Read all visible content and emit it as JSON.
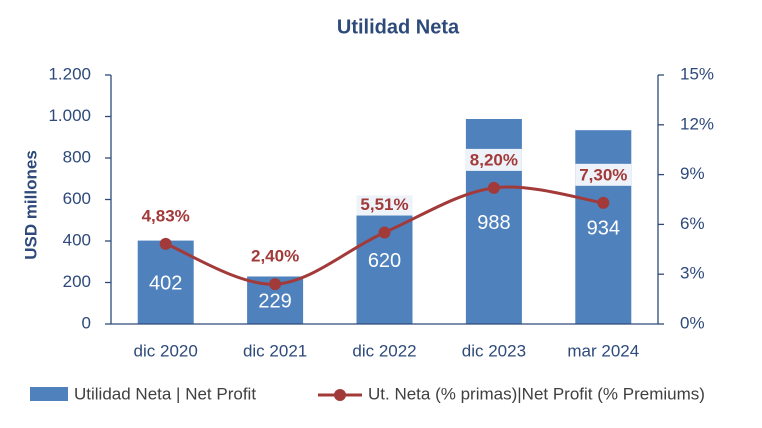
{
  "chart_data": {
    "type": "bar",
    "title": "Utilidad Neta",
    "y_label": "USD millones",
    "categories": [
      "dic 2020",
      "dic 2021",
      "dic 2022",
      "dic 2023",
      "mar 2024"
    ],
    "series": [
      {
        "name": "Utilidad Neta | Net Profit",
        "type": "bar",
        "color": "#4f81bd",
        "values": [
          402,
          229,
          620,
          988,
          934
        ]
      },
      {
        "name": "Ut. Neta (% primas)|Net Profit (% Premiums)",
        "type": "line",
        "axis": "y2",
        "color": "#a33a3a",
        "smooth": true,
        "values": [
          4.83,
          2.4,
          5.51,
          8.2,
          7.3
        ],
        "value_labels": [
          "4,83%",
          "2,40%",
          "5,51%",
          "8,20%",
          "7,30%"
        ]
      }
    ],
    "ylim": [
      0,
      1200
    ],
    "yticks": [
      0,
      200,
      400,
      600,
      800,
      {
        "value": 1000,
        "label": "1.000"
      },
      {
        "value": 1200,
        "label": "1.200"
      }
    ],
    "y2lim": [
      0,
      15
    ],
    "y2ticks": [
      {
        "value": 0,
        "label": "0%"
      },
      {
        "value": 3,
        "label": "3%"
      },
      {
        "value": 6,
        "label": "6%"
      },
      {
        "value": 9,
        "label": "9%"
      },
      {
        "value": 12,
        "label": "12%"
      },
      {
        "value": 15,
        "label": "15%"
      }
    ],
    "legend": "bottom"
  }
}
